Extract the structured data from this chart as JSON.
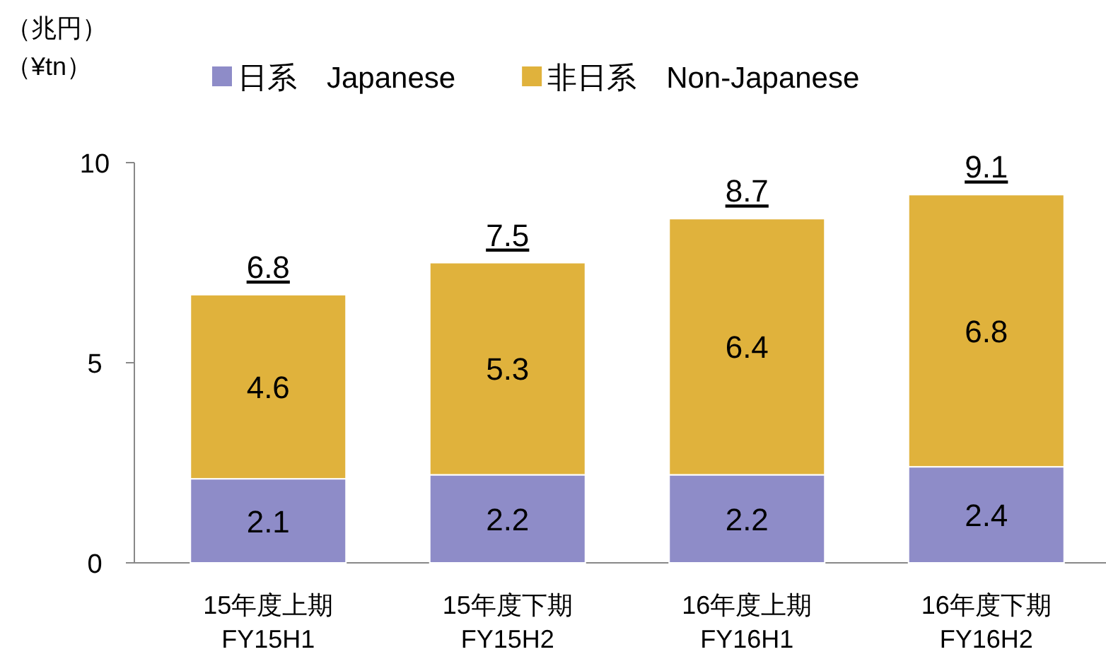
{
  "chart_data": {
    "type": "bar",
    "stacked": true,
    "ylabel": "（兆円）（¥tn）",
    "categories": [
      "15年度上期\nFY15H1",
      "15年度下期\nFY15H2",
      "16年度上期\nFY16H1",
      "16年度下期\nFY16H2"
    ],
    "series": [
      {
        "name": "日系　Japanese",
        "color": "#8e8cc8",
        "values": [
          2.1,
          2.2,
          2.2,
          2.4
        ]
      },
      {
        "name": "非日系　Non-Japanese",
        "color": "#e0b23c",
        "values": [
          4.6,
          5.3,
          6.4,
          6.8
        ]
      }
    ],
    "ylim": [
      0,
      10
    ],
    "yticks": [
      0,
      5,
      10
    ],
    "data_labels": true,
    "totals": [
      "6.8",
      "7.5",
      "8.7",
      "9.1"
    ],
    "legend": "top"
  }
}
